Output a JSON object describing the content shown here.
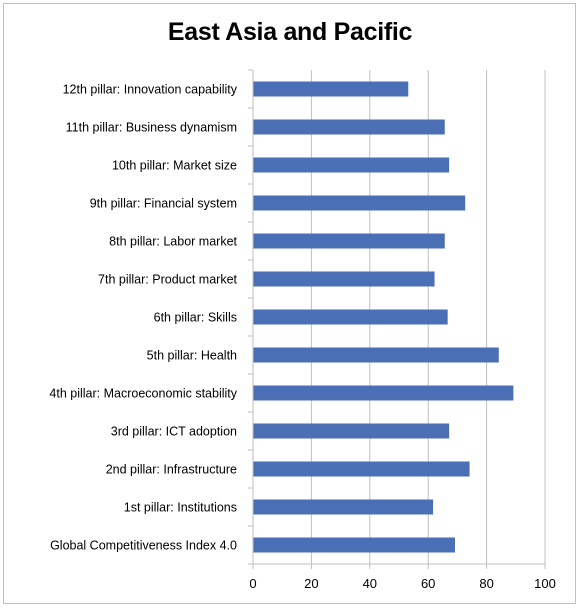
{
  "chart_data": {
    "type": "bar",
    "orientation": "horizontal",
    "title": "East Asia and Pacific",
    "categories": [
      "Global Competitiveness Index 4.0",
      "1st pillar: Institutions",
      "2nd pillar: Infrastructure",
      "3rd pillar: ICT adoption",
      "4th pillar: Macroeconomic stability",
      "5th pillar: Health",
      "6th pillar: Skills",
      "7th pillar: Product market",
      "8th pillar: Labor market",
      "9th pillar: Financial system",
      "10th pillar: Market size",
      "11th pillar: Business dynamism",
      "12th pillar: Innovation capability"
    ],
    "values": [
      69,
      61.5,
      74,
      67,
      89,
      84,
      66.5,
      62,
      65.5,
      72.5,
      67,
      65.5,
      53
    ],
    "xlim": [
      0,
      100
    ],
    "xticks": [
      "0",
      "20",
      "40",
      "60",
      "80",
      "100"
    ],
    "grid": true,
    "bar_color": "#4a6fb5",
    "grid_color": "#bfbfbf"
  }
}
